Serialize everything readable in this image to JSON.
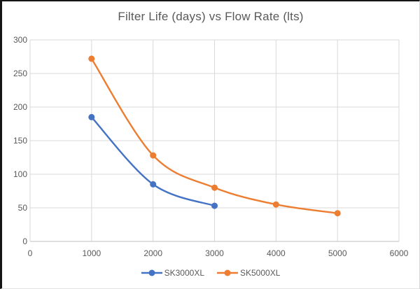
{
  "window": {
    "background": "#ffffff",
    "frame_dark": "#151515",
    "frame_light": "#d6d6d6"
  },
  "chart_data": {
    "type": "line",
    "title": "Filter Life (days) vs Flow Rate (lts)",
    "xlabel": "",
    "ylabel": "",
    "xlim": [
      0,
      6000
    ],
    "ylim": [
      0,
      300
    ],
    "x_ticks": [
      0,
      1000,
      2000,
      3000,
      4000,
      5000,
      6000
    ],
    "y_ticks": [
      0,
      50,
      100,
      150,
      200,
      250,
      300
    ],
    "grid": true,
    "smooth_lines": true,
    "legend_position": "bottom-center",
    "gridline_color": "#d9d9d9",
    "axis_line_color": "#bfbfbf",
    "text_color": "#595959",
    "series": [
      {
        "name": "SK3000XL",
        "color": "#4472C4",
        "points": [
          [
            1000,
            185
          ],
          [
            2000,
            85
          ],
          [
            3000,
            53
          ]
        ]
      },
      {
        "name": "SK5000XL",
        "color": "#ED7D31",
        "points": [
          [
            1000,
            272
          ],
          [
            2000,
            128
          ],
          [
            3000,
            80
          ],
          [
            4000,
            55
          ],
          [
            5000,
            42
          ]
        ]
      }
    ]
  }
}
